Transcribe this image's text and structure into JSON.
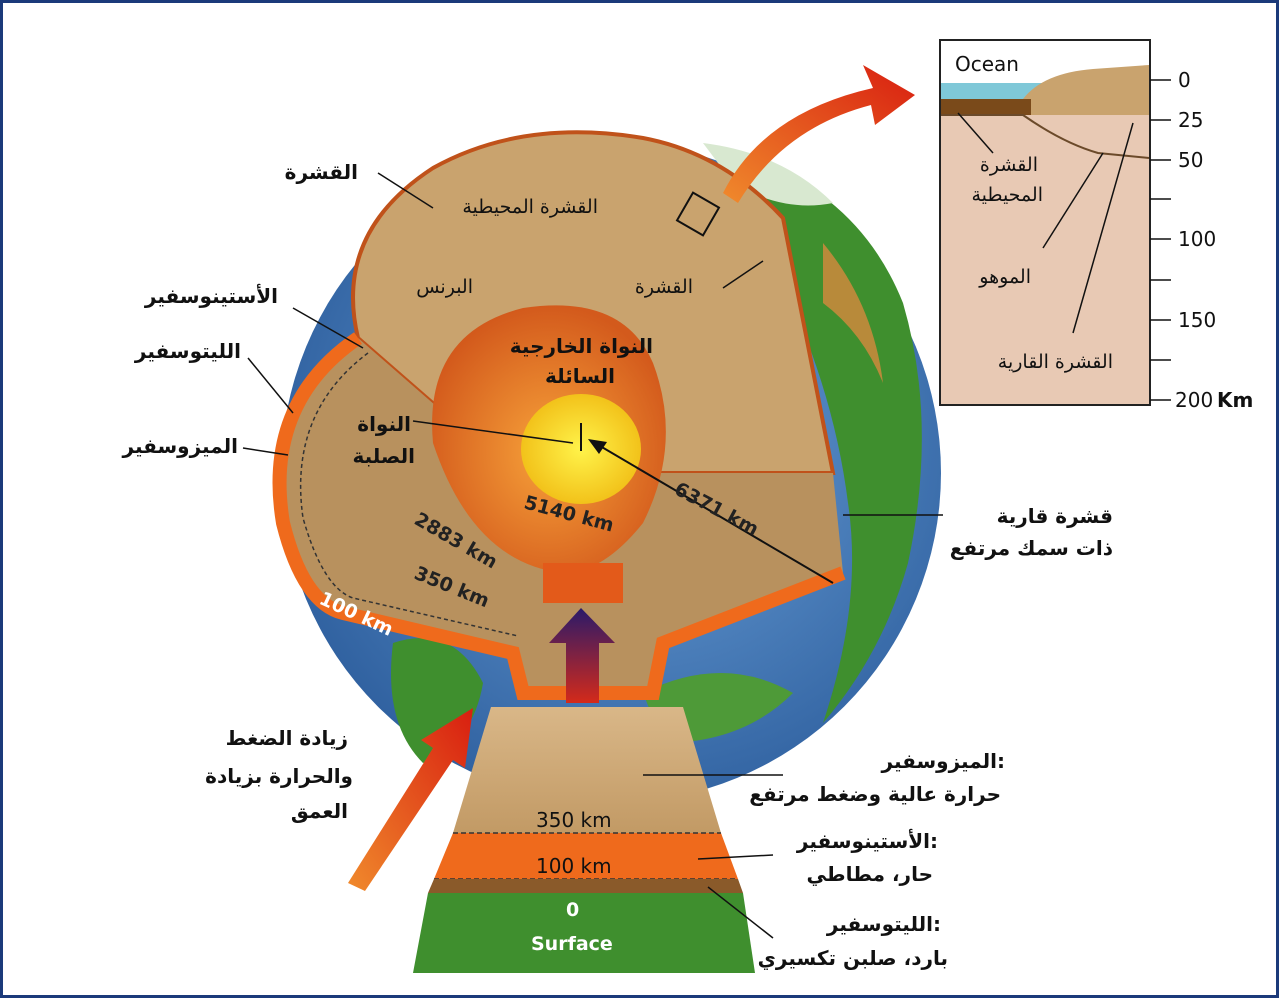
{
  "inset": {
    "ocean_label": "Ocean",
    "oceanic_crust": [
      "القشرة",
      "المحيطية"
    ],
    "moho": "الموهو",
    "continental_crust": "القشرة القارية",
    "scale_ticks": [
      "0",
      "25",
      "50",
      "100",
      "150",
      "200"
    ],
    "scale_unit": "Km"
  },
  "globe": {
    "crust": "القشرة",
    "oceanic_crust": "القشرة المحيطية",
    "mantle": "البرنس",
    "crust_right": "القشرة",
    "asthenosphere": "الأستينوسفير",
    "lithosphere": "الليتوسفير",
    "mesosphere": "الميزوسفير",
    "outer_core": [
      "النواة الخارجية",
      "السائلة"
    ],
    "inner_core": [
      "النواة",
      "الصلبة"
    ],
    "depth_5140": "5140 km",
    "depth_6371": "6371 km",
    "depth_2883": "2883 km",
    "depth_350": "350 km",
    "depth_100": "100 km",
    "thick_continental": [
      "قشرة قارية",
      "ذات سمك مرتفع"
    ]
  },
  "pressure_note": [
    "زيادة الضغط",
    "والحرارة بزيادة",
    "العمق"
  ],
  "column": {
    "d350": "350 km",
    "d100": "100 km",
    "d0": "0",
    "surface": "Surface",
    "mesosphere": [
      "الميزوسفير:",
      "حرارة عالية وضغط مرتفع"
    ],
    "asthenosphere": [
      "الأستينوسفير:",
      "حار، مطاطي"
    ],
    "lithosphere": [
      "الليتوسفير:",
      "بارد، صلبن تكسيري"
    ]
  },
  "colors": {
    "frame": "#1b3a7a",
    "mantle": "#c9a36e",
    "outer_core": "#e0762a",
    "inner_core": "#ffe600",
    "asthenosphere": "#ef6a1c",
    "ocean": "#4a7fc4",
    "land": "#3a8a2c"
  }
}
